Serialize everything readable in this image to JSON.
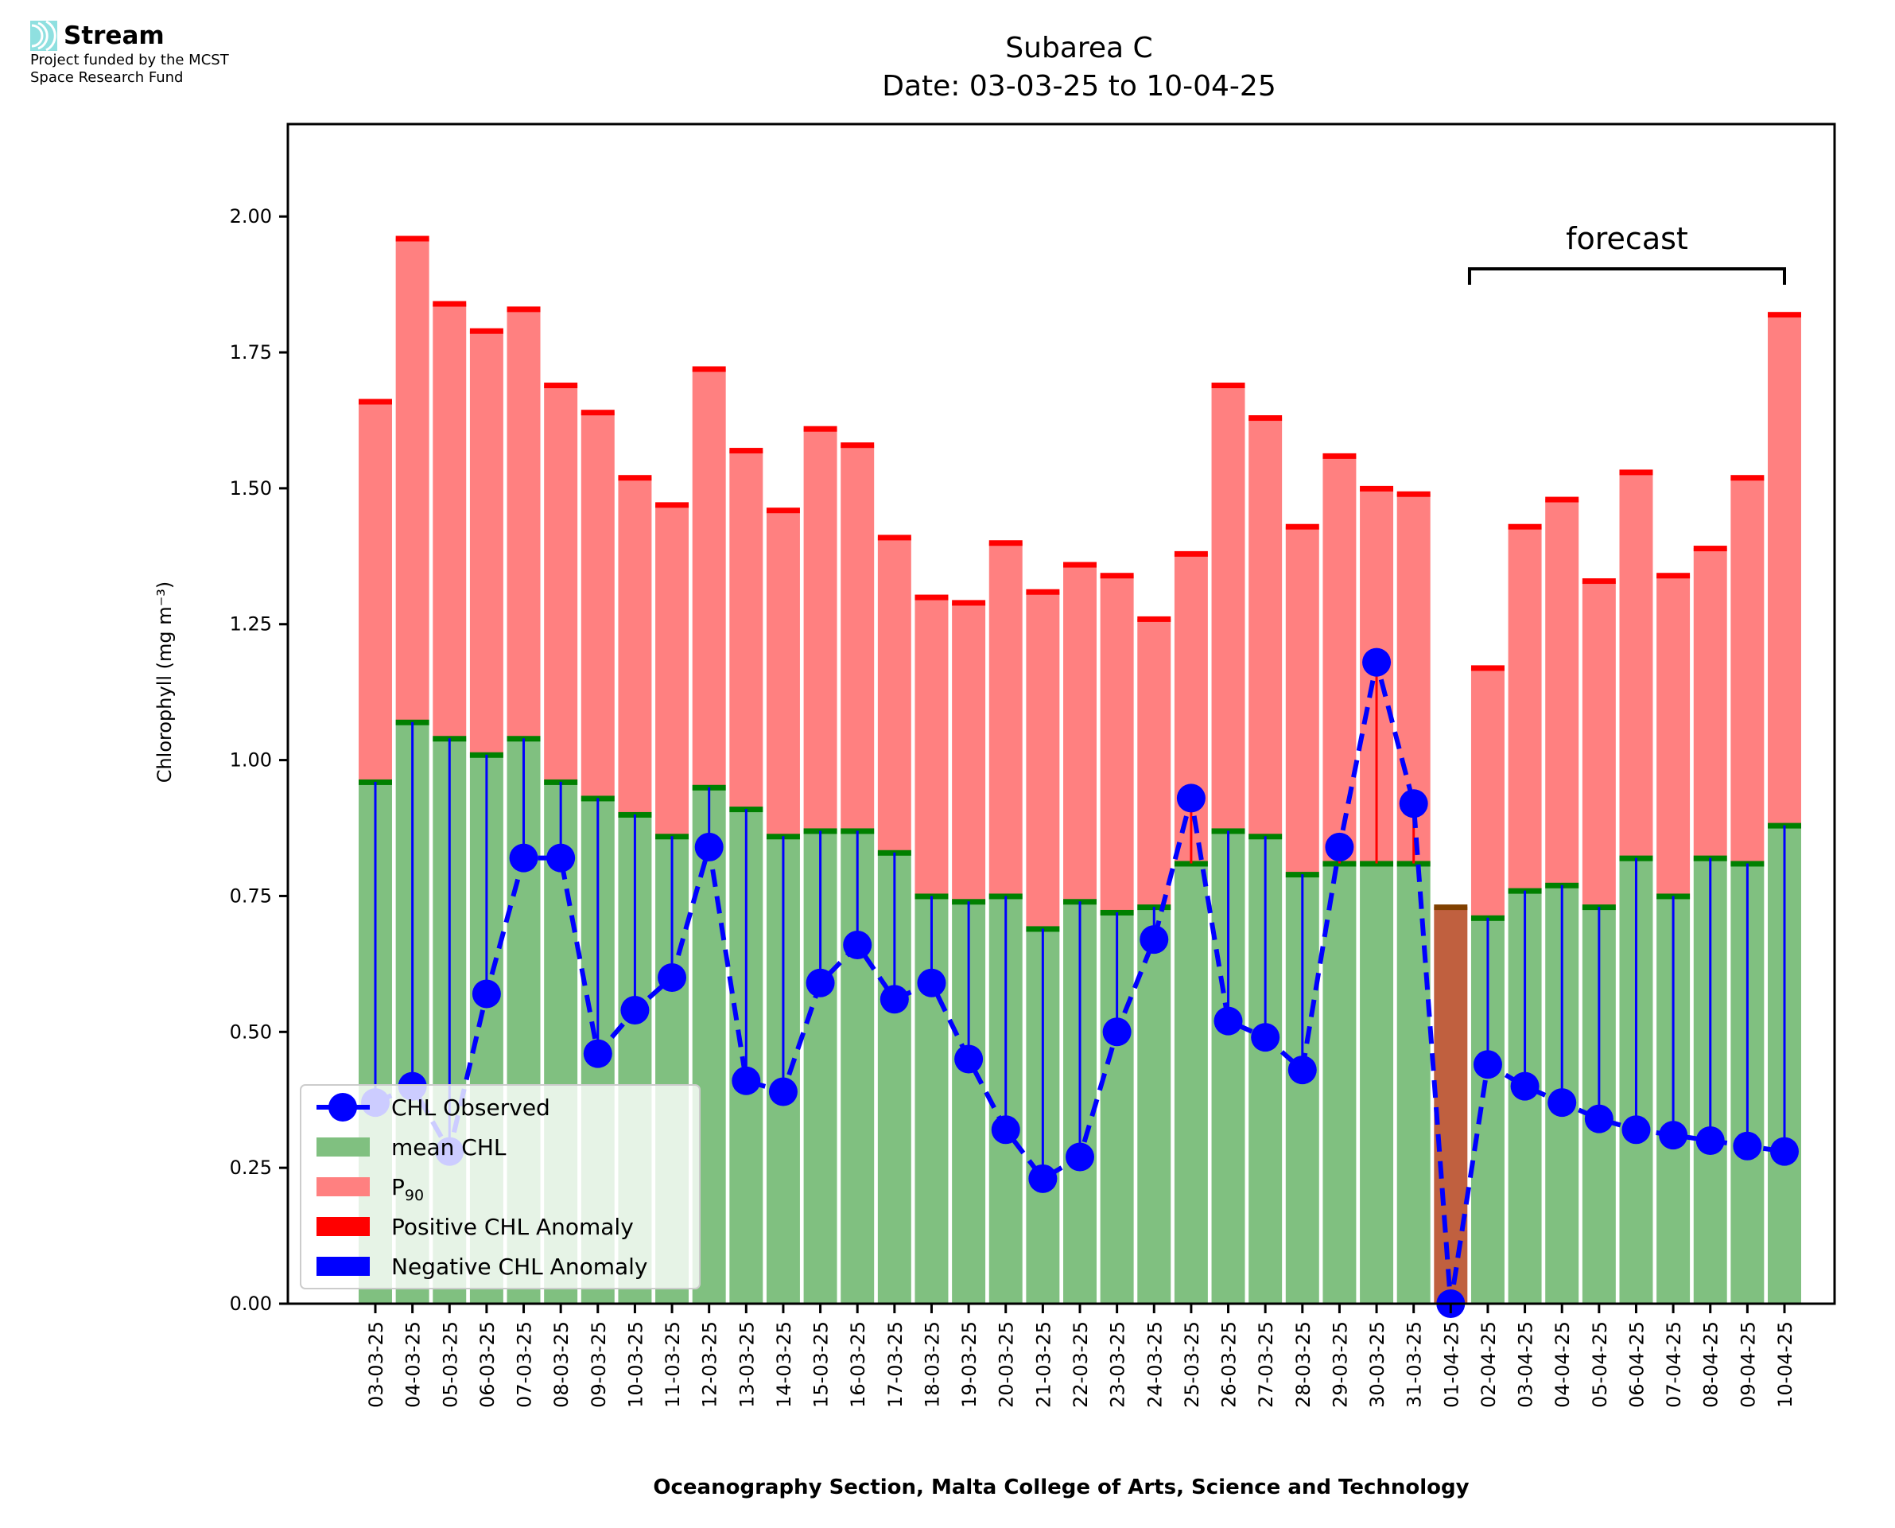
{
  "header": {
    "brand": "Stream",
    "funding_line1": "Project funded by the MCST",
    "funding_line2": "Space Research Fund"
  },
  "chart_data": {
    "type": "bar",
    "title": "Subarea C",
    "subtitle": "Date: 03-03-25 to 10-04-25",
    "xlabel": "Oceanography Section, Malta College of Arts, Science and Technology",
    "ylabel": "Chlorophyll (mg m⁻³)",
    "ylim": [
      0,
      2.17
    ],
    "yticks": [
      "0.00",
      "0.25",
      "0.50",
      "0.75",
      "1.00",
      "1.25",
      "1.50",
      "1.75",
      "2.00"
    ],
    "grid": false,
    "legend_position": "bottom-left",
    "annotation": {
      "text": "forecast",
      "from": "02-04-25",
      "to": "10-04-25"
    },
    "categories": [
      "03-03-25",
      "04-03-25",
      "05-03-25",
      "06-03-25",
      "07-03-25",
      "08-03-25",
      "09-03-25",
      "10-03-25",
      "11-03-25",
      "12-03-25",
      "13-03-25",
      "14-03-25",
      "15-03-25",
      "16-03-25",
      "17-03-25",
      "18-03-25",
      "19-03-25",
      "20-03-25",
      "21-03-25",
      "22-03-25",
      "23-03-25",
      "24-03-25",
      "25-03-25",
      "26-03-25",
      "27-03-25",
      "28-03-25",
      "29-03-25",
      "30-03-25",
      "31-03-25",
      "01-04-25",
      "02-04-25",
      "03-04-25",
      "04-04-25",
      "05-04-25",
      "06-04-25",
      "07-04-25",
      "08-04-25",
      "09-04-25",
      "10-04-25"
    ],
    "series": [
      {
        "name": "P₉₀",
        "legend_base": "P",
        "legend_sub": "90",
        "color": "#ff8080",
        "values": [
          1.66,
          1.96,
          1.84,
          1.79,
          1.83,
          1.69,
          1.64,
          1.52,
          1.47,
          1.72,
          1.57,
          1.46,
          1.61,
          1.58,
          1.41,
          1.3,
          1.29,
          1.4,
          1.31,
          1.36,
          1.34,
          1.26,
          1.38,
          1.69,
          1.63,
          1.43,
          1.56,
          1.5,
          1.49,
          null,
          1.17,
          1.43,
          1.48,
          1.33,
          1.53,
          1.34,
          1.39,
          1.52,
          1.82
        ]
      },
      {
        "name": "mean CHL",
        "color": "#80c080",
        "values": [
          0.96,
          1.07,
          1.04,
          1.01,
          1.04,
          0.96,
          0.93,
          0.9,
          0.86,
          0.95,
          0.91,
          0.86,
          0.87,
          0.87,
          0.83,
          0.75,
          0.74,
          0.75,
          0.69,
          0.74,
          0.72,
          0.73,
          0.81,
          0.87,
          0.86,
          0.79,
          0.81,
          0.81,
          0.81,
          0.73,
          0.71,
          0.76,
          0.77,
          0.73,
          0.82,
          0.75,
          0.82,
          0.81,
          0.88
        ]
      },
      {
        "name": "CHL Observed",
        "color": "#0000ff",
        "values": [
          0.37,
          0.4,
          0.28,
          0.57,
          0.82,
          0.82,
          0.46,
          0.54,
          0.6,
          0.84,
          0.41,
          0.39,
          0.59,
          0.66,
          0.56,
          0.59,
          0.45,
          0.32,
          0.23,
          0.27,
          0.5,
          0.67,
          0.93,
          0.52,
          0.49,
          0.43,
          0.84,
          1.18,
          0.92,
          0.0,
          0.44,
          0.4,
          0.37,
          0.34,
          0.32,
          0.31,
          0.3,
          0.29,
          0.28
        ]
      },
      {
        "name": "Positive CHL Anomaly",
        "color": "#ff0000"
      },
      {
        "name": "Negative CHL Anomaly",
        "color": "#0000ff"
      }
    ],
    "missing_mean_color": "#c0603f"
  }
}
